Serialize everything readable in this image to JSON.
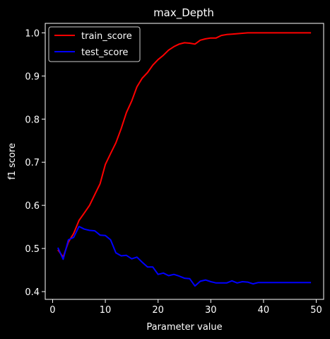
{
  "chart_data": {
    "type": "line",
    "title": "max_Depth",
    "xlabel": "Parameter value",
    "ylabel": "f1 score",
    "xlim": [
      -1.4,
      51.4
    ],
    "ylim": [
      0.382,
      1.022
    ],
    "xticks": [
      0,
      10,
      20,
      30,
      40,
      50
    ],
    "yticks": [
      0.4,
      0.5,
      0.6,
      0.7,
      0.8,
      0.9,
      1.0
    ],
    "xtick_labels": [
      "0",
      "10",
      "20",
      "30",
      "40",
      "50"
    ],
    "ytick_labels": [
      "0.4",
      "0.5",
      "0.6",
      "0.7",
      "0.8",
      "0.9",
      "1.0"
    ],
    "grid": false,
    "legend_position": "upper-left",
    "x": [
      1,
      2,
      3,
      4,
      5,
      6,
      7,
      8,
      9,
      10,
      11,
      12,
      13,
      14,
      15,
      16,
      17,
      18,
      19,
      20,
      21,
      22,
      23,
      24,
      25,
      26,
      27,
      28,
      29,
      30,
      31,
      32,
      33,
      34,
      35,
      36,
      37,
      38,
      39,
      40,
      41,
      42,
      43,
      44,
      45,
      46,
      47,
      48,
      49
    ],
    "series": [
      {
        "name": "train_score",
        "color": "#ff0000",
        "values": [
          0.497,
          0.48,
          0.515,
          0.535,
          0.565,
          0.582,
          0.6,
          0.625,
          0.65,
          0.695,
          0.72,
          0.745,
          0.778,
          0.815,
          0.842,
          0.875,
          0.895,
          0.908,
          0.925,
          0.938,
          0.948,
          0.96,
          0.968,
          0.974,
          0.977,
          0.976,
          0.974,
          0.983,
          0.986,
          0.988,
          0.988,
          0.994,
          0.996,
          0.997,
          0.998,
          0.999,
          1.0,
          1.0,
          1.0,
          1.0,
          1.0,
          1.0,
          1.0,
          1.0,
          1.0,
          1.0,
          1.0,
          1.0,
          1.0
        ]
      },
      {
        "name": "test_score",
        "color": "#0000ff",
        "values": [
          0.502,
          0.475,
          0.52,
          0.526,
          0.551,
          0.545,
          0.542,
          0.541,
          0.531,
          0.53,
          0.52,
          0.49,
          0.483,
          0.484,
          0.476,
          0.48,
          0.468,
          0.457,
          0.457,
          0.44,
          0.443,
          0.437,
          0.44,
          0.436,
          0.431,
          0.43,
          0.413,
          0.424,
          0.427,
          0.423,
          0.42,
          0.42,
          0.42,
          0.425,
          0.42,
          0.423,
          0.422,
          0.418,
          0.421,
          0.421,
          0.421,
          0.421,
          0.421,
          0.421,
          0.421,
          0.421,
          0.421,
          0.421,
          0.421
        ]
      }
    ]
  }
}
